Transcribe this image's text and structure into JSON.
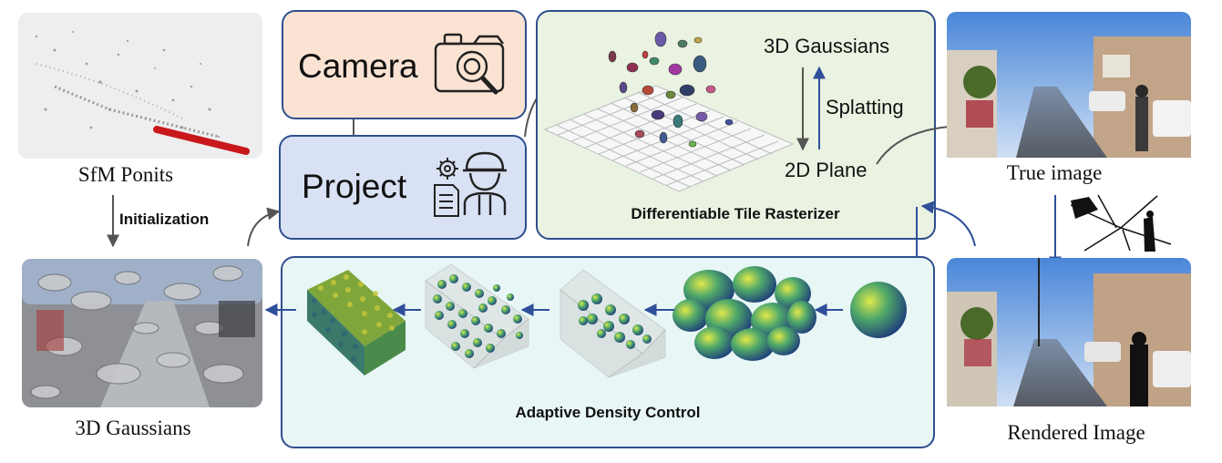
{
  "sfm_caption": "SfM Ponits",
  "init_label": "Initialization",
  "gauss_caption": "3D Gaussians",
  "camera_label": "Camera",
  "project_label": "Project",
  "raster": {
    "gaussians_label": "3D Gaussians",
    "splatting_label": "Splatting",
    "plane_label": "2D Plane",
    "title": "Differentiable Tile Rasterizer"
  },
  "adc_title": "Adaptive Density Control",
  "true_caption": "True image",
  "rendered_caption": "Rendered Image",
  "colors": {
    "camera_fill": "#fbe3d3",
    "project_fill": "#d9e1f4",
    "raster_fill": "#eaf3e1",
    "adc_fill": "#e8f6f6",
    "border": "#2e4f8e",
    "blue_arrow": "#2f4f9a",
    "gray_arrow": "#555555"
  },
  "icons": [
    "camera-search-icon",
    "gear-icon",
    "document-icon",
    "worker-icon"
  ]
}
